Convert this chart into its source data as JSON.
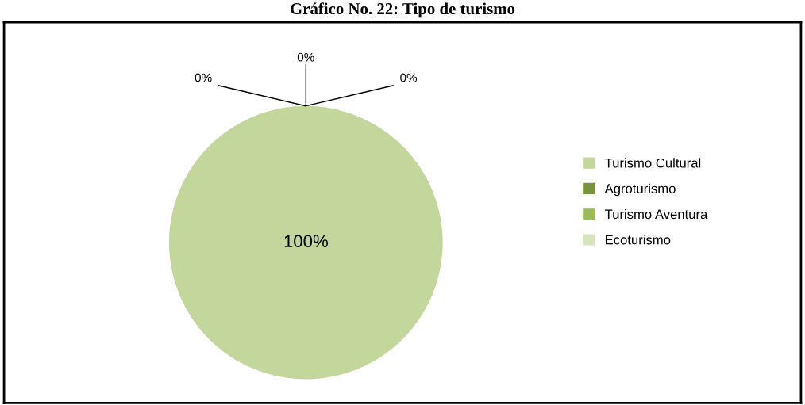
{
  "chart_data": {
    "type": "pie",
    "title": "Gráfico No. 22: Tipo de turismo",
    "categories": [
      "Turismo Cultural",
      "Agroturismo",
      "Turismo Aventura",
      "Ecoturismo"
    ],
    "values": [
      100,
      0,
      0,
      0
    ],
    "value_labels": [
      "100%",
      "0%",
      "0%",
      "0%"
    ],
    "colors": [
      "#c3d69b",
      "#77933c",
      "#9bbb59",
      "#d7e4bd"
    ],
    "legend": "right"
  }
}
